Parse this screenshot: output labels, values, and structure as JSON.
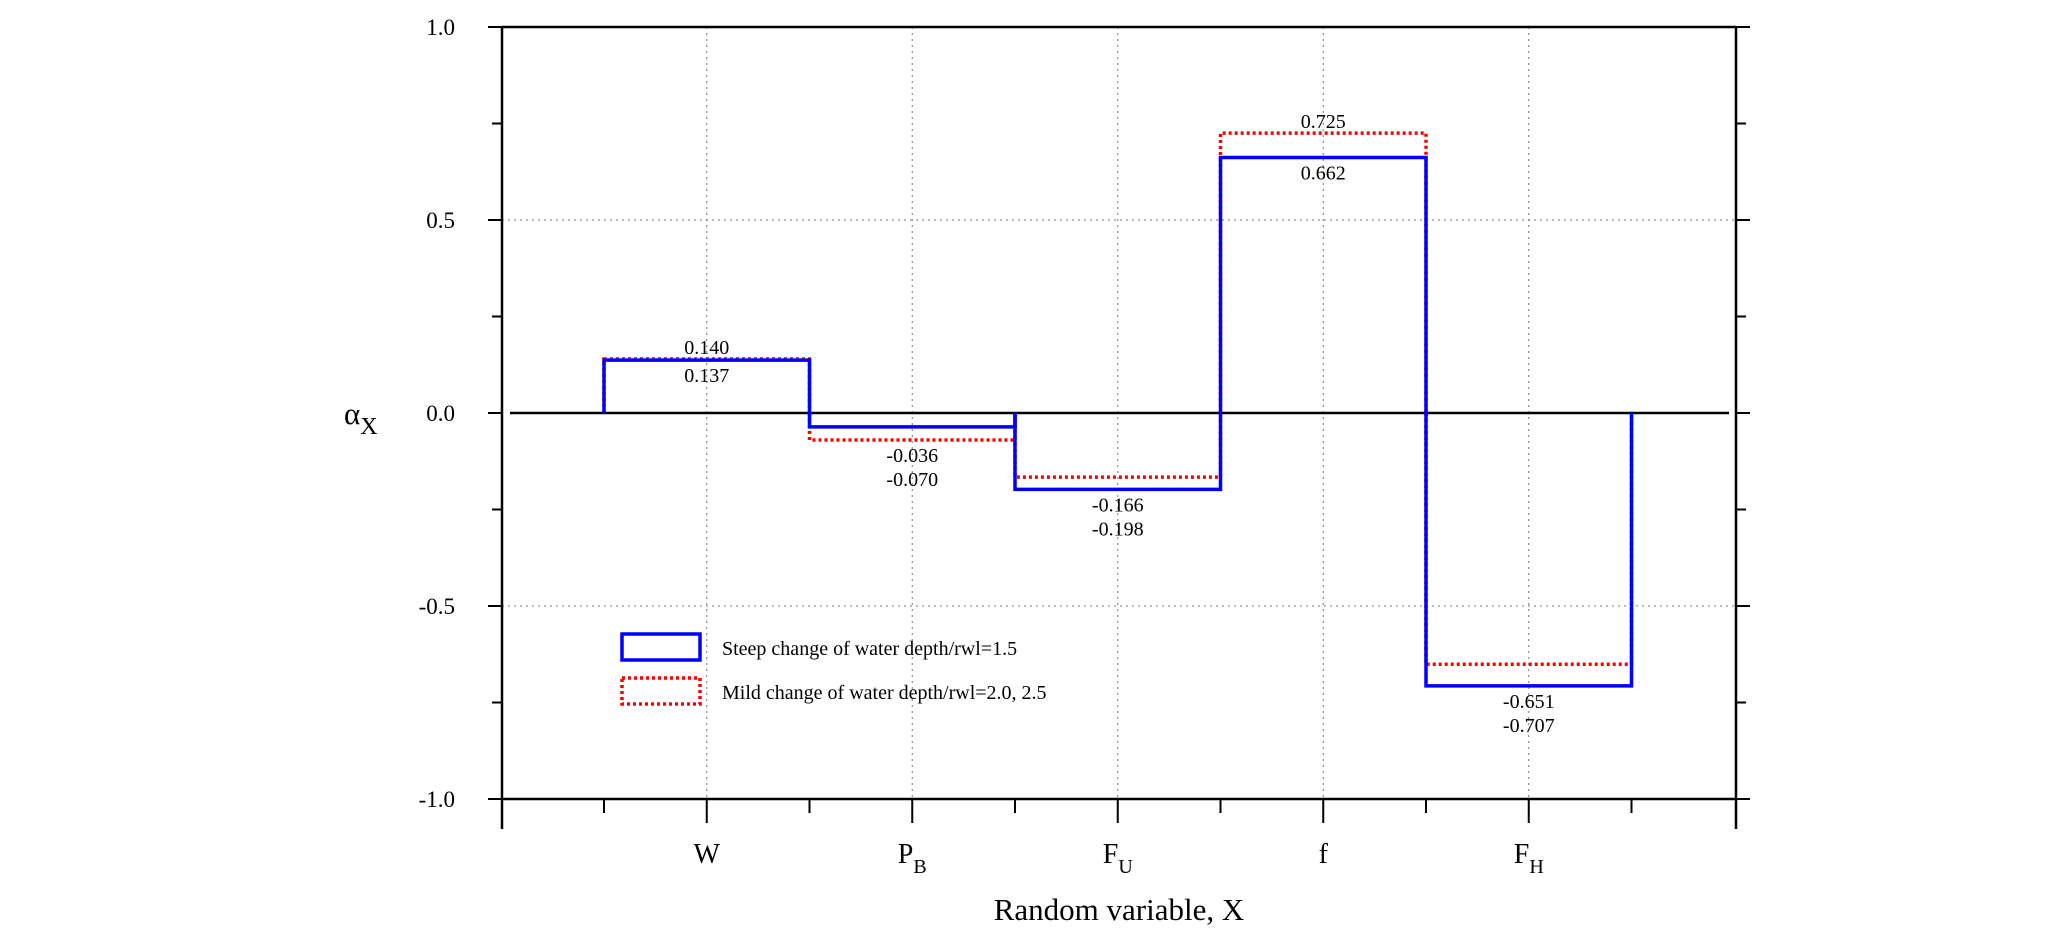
{
  "chart_data": {
    "type": "bar",
    "title": "",
    "xlabel": "Random variable, X",
    "ylabel": {
      "main": "α",
      "sub": "X"
    },
    "ylim": [
      -1.0,
      1.0
    ],
    "yticks": [
      "-1.0",
      "-0.5",
      "0.0",
      "0.5",
      "1.0"
    ],
    "grid": true,
    "legend_position": "lower-left",
    "categories": [
      {
        "main": "W",
        "sub": ""
      },
      {
        "main": "P",
        "sub": "B"
      },
      {
        "main": "F",
        "sub": "U"
      },
      {
        "main": "f",
        "sub": ""
      },
      {
        "main": "F",
        "sub": "H"
      }
    ],
    "series": [
      {
        "name": "Steep change of water depth/rwl=1.5",
        "style": "solid",
        "color": "#0000ff",
        "values": [
          0.137,
          -0.036,
          -0.198,
          0.662,
          -0.707
        ],
        "labels": [
          "0.137",
          "-0.036",
          "-0.198",
          "0.662",
          "-0.707"
        ]
      },
      {
        "name": "Mild change of water depth/rwl=2.0, 2.5",
        "style": "dotted",
        "color": "#ff0000",
        "values": [
          0.14,
          -0.07,
          -0.166,
          0.725,
          -0.651
        ],
        "labels": [
          "0.140",
          "-0.070",
          "-0.166",
          "0.725",
          "-0.651"
        ]
      }
    ]
  }
}
